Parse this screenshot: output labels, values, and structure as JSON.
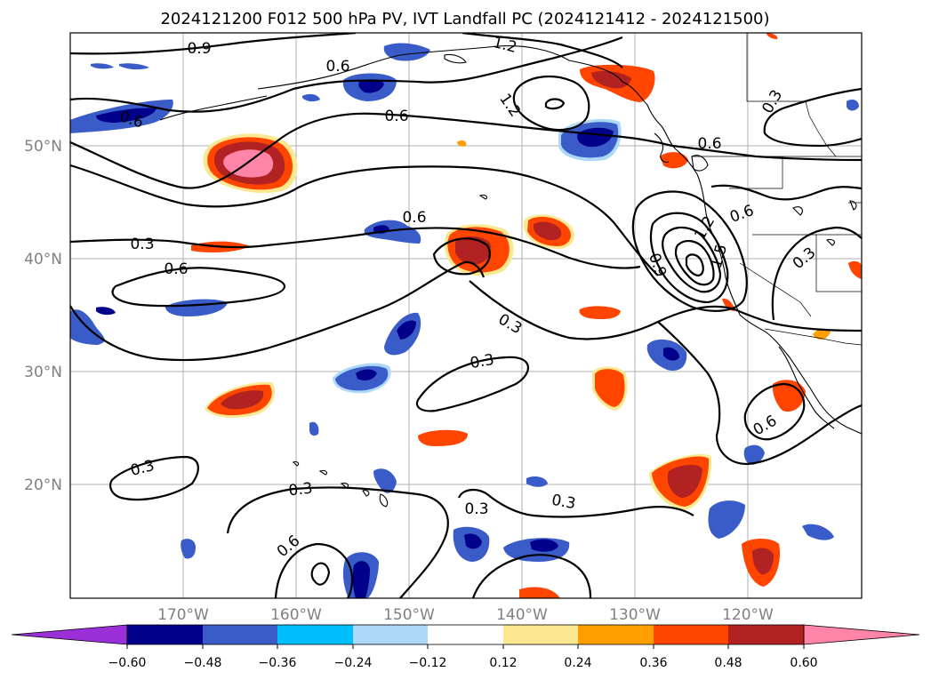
{
  "title": "2024121200 F012 500 hPa PV, IVT Landfall PC (2024121412 - 2024121500)",
  "map": {
    "lon_range": [
      -180,
      -110
    ],
    "lat_range": [
      10,
      60
    ],
    "lon_ticks": [
      "170°W",
      "160°W",
      "150°W",
      "140°W",
      "130°W",
      "120°W"
    ],
    "lat_ticks": [
      "20°N",
      "30°N",
      "40°N",
      "50°N"
    ],
    "grid": true
  },
  "contour_labels": [
    "0.9",
    "1.2",
    "0.6",
    "1.2",
    "0.6",
    "0.3",
    "0.6",
    "0.6",
    "0.6",
    "0.6",
    "0.3",
    "0.6",
    "0.3",
    "1.2",
    "1.5",
    "0.9",
    "0.3",
    "0.3",
    "0.6",
    "0.3",
    "0.3",
    "0.3",
    "0.3",
    "0.6"
  ],
  "colorbar": {
    "ticks": [
      "−0.60",
      "−0.48",
      "−0.36",
      "−0.24",
      "−0.12",
      "0.12",
      "0.24",
      "0.36",
      "0.48",
      "0.60"
    ],
    "colors": [
      "#9b30d9",
      "#00008b",
      "#3a5cc9",
      "#00bfff",
      "#add8f7",
      "#ffffff",
      "#fbe890",
      "#ff9f00",
      "#ff4500",
      "#b22222",
      "#ff85a8"
    ]
  }
}
